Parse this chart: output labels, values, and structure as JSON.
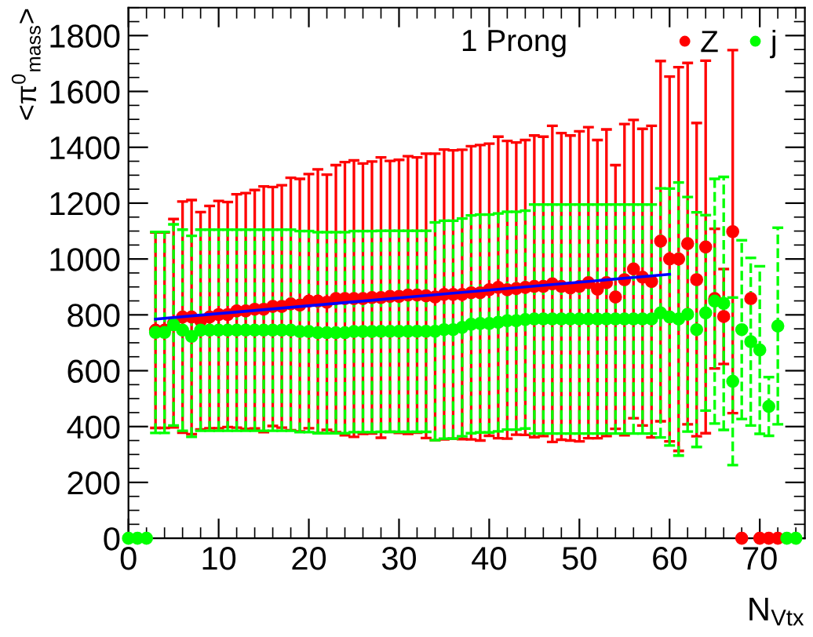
{
  "chart_data": {
    "type": "scatter",
    "ylabel": "<π$^{0}$$_{mass}$>",
    "xlabel": "N$_{Vtx}$",
    "xlim": [
      0,
      75
    ],
    "ylim": [
      0,
      1900
    ],
    "xticks": [
      0,
      10,
      20,
      30,
      40,
      50,
      60,
      70
    ],
    "yticks": [
      0,
      200,
      400,
      600,
      800,
      1000,
      1200,
      1400,
      1600,
      1800
    ],
    "grid": false,
    "legend": "top right",
    "marker": "circle",
    "annotations": [
      "1 Prong"
    ],
    "x": [
      0,
      1,
      2,
      3,
      4,
      5,
      6,
      7,
      8,
      9,
      10,
      11,
      12,
      13,
      14,
      15,
      16,
      17,
      18,
      19,
      20,
      21,
      22,
      23,
      24,
      25,
      26,
      27,
      28,
      29,
      30,
      31,
      32,
      33,
      34,
      35,
      36,
      37,
      38,
      39,
      40,
      41,
      42,
      43,
      44,
      45,
      46,
      47,
      48,
      49,
      50,
      51,
      52,
      53,
      54,
      55,
      56,
      57,
      58,
      59,
      60,
      61,
      62,
      63,
      64,
      65,
      66,
      67,
      68,
      69,
      70,
      71,
      72,
      73,
      74
    ],
    "series": [
      {
        "name": "Z",
        "color": "#ff0000",
        "line_style": "solid",
        "values": [
          null,
          null,
          null,
          745,
          745,
          770,
          792,
          792,
          779,
          792,
          801,
          801,
          814,
          814,
          820,
          820,
          830,
          830,
          839,
          835,
          849,
          849,
          845,
          858,
          858,
          858,
          858,
          862,
          862,
          866,
          866,
          871,
          871,
          868,
          864,
          873,
          873,
          873,
          879,
          879,
          890,
          898,
          890,
          894,
          898,
          902,
          902,
          911,
          902,
          896,
          902,
          915,
          892,
          915,
          864,
          926,
          964,
          935,
          919,
          1064,
          1000,
          1000,
          1055,
          926,
          1043,
          858,
          794,
          1098,
          0,
          858,
          0,
          0,
          0,
          null,
          null
        ],
        "errors": [
          null,
          null,
          null,
          350,
          350,
          373,
          414,
          419,
          389,
          398,
          407,
          403,
          418,
          422,
          427,
          440,
          428,
          434,
          452,
          452,
          455,
          472,
          457,
          478,
          489,
          495,
          484,
          487,
          502,
          485,
          489,
          497,
          493,
          509,
          513,
          519,
          516,
          518,
          525,
          529,
          523,
          540,
          533,
          523,
          528,
          540,
          536,
          566,
          549,
          546,
          555,
          557,
          534,
          549,
          472,
          557,
          534,
          531,
          558,
          645,
          653,
          687,
          647,
          561,
          667,
          250,
          170,
          650,
          null,
          null,
          null,
          null,
          null,
          null,
          null
        ]
      },
      {
        "name": "j",
        "color": "#00ff00",
        "line_style": "dashed",
        "values": [
          0,
          0,
          0,
          737,
          737,
          764,
          745,
          723,
          745,
          745,
          745,
          745,
          745,
          745,
          745,
          745,
          745,
          745,
          745,
          740,
          740,
          736,
          736,
          736,
          736,
          740,
          740,
          740,
          741,
          741,
          741,
          741,
          741,
          741,
          741,
          747,
          747,
          755,
          766,
          769,
          769,
          773,
          779,
          779,
          783,
          785,
          785,
          785,
          785,
          785,
          785,
          785,
          785,
          785,
          785,
          785,
          785,
          785,
          785,
          807,
          792,
          785,
          802,
          747,
          807,
          849,
          841,
          562,
          747,
          704,
          674,
          472,
          760,
          0,
          0
        ],
        "errors": [
          null,
          null,
          null,
          360,
          360,
          360,
          360,
          360,
          360,
          360,
          360,
          360,
          360,
          360,
          360,
          360,
          360,
          360,
          360,
          360,
          360,
          360,
          360,
          360,
          360,
          360,
          360,
          360,
          360,
          360,
          360,
          360,
          360,
          360,
          390,
          390,
          390,
          390,
          390,
          390,
          390,
          390,
          390,
          390,
          390,
          410,
          410,
          410,
          410,
          410,
          410,
          410,
          410,
          410,
          410,
          410,
          410,
          410,
          410,
          446,
          460,
          489,
          420,
          420,
          350,
          438,
          453,
          300,
          320,
          300,
          300,
          105,
          352,
          null,
          null
        ]
      },
      {
        "type": "line",
        "marker": "none",
        "color": "#0000ff",
        "x": [
          3,
          60
        ],
        "values": [
          785,
          945
        ]
      }
    ]
  }
}
